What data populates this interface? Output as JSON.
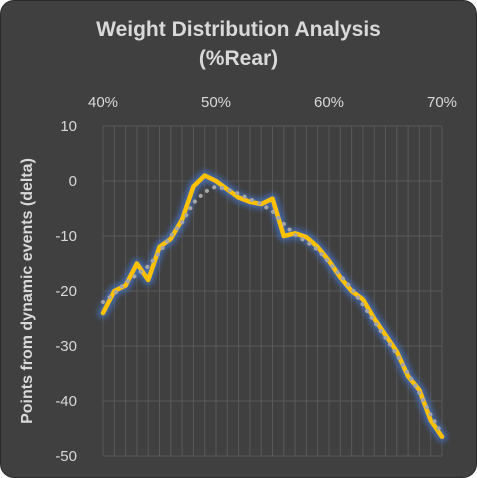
{
  "chart_data": {
    "type": "line",
    "title_line1": "Weight Distribution Analysis",
    "title_line2": "(%Rear)",
    "xlabel": "",
    "ylabel": "Points from dynamic events (delta)",
    "x_axis_position": "top",
    "xlim": [
      40,
      70
    ],
    "ylim": [
      -50,
      10
    ],
    "x_tick_labels": [
      "40%",
      "50%",
      "60%",
      "70%"
    ],
    "x_tick_values": [
      40,
      50,
      60,
      70
    ],
    "y_tick_labels": [
      "10",
      "0",
      "-10",
      "-20",
      "-30",
      "-40",
      "-50"
    ],
    "y_tick_values": [
      10,
      0,
      -10,
      -20,
      -30,
      -40,
      -50
    ],
    "grid": true,
    "legend": "none",
    "series": [
      {
        "color": "#ffc000",
        "style": "solid",
        "glow": "#4472c4",
        "x": [
          40,
          41,
          42,
          43,
          44,
          45,
          46,
          47,
          48,
          49,
          50,
          51,
          52,
          53,
          54,
          55,
          56,
          57,
          58,
          59,
          60,
          61,
          62,
          63,
          64,
          65,
          66,
          67,
          68,
          69,
          70
        ],
        "y": [
          -24,
          -20,
          -19,
          -15,
          -18,
          -12,
          -10.5,
          -7,
          -1,
          1,
          0,
          -1.5,
          -3,
          -3.8,
          -4.2,
          -3.2,
          -10,
          -9.5,
          -10.2,
          -12,
          -14.5,
          -17.5,
          -20,
          -21.5,
          -25,
          -28,
          -31,
          -35.5,
          -38,
          -43.5,
          -46.5
        ]
      },
      {
        "color": "#a6a6a6",
        "style": "dotted",
        "x": [
          40,
          41,
          42,
          43,
          44,
          45,
          46,
          47,
          48,
          49,
          50,
          51,
          52,
          53,
          54,
          55,
          56,
          57,
          58,
          59,
          60,
          61,
          62,
          63,
          64,
          65,
          66,
          67,
          68,
          69,
          70
        ],
        "y": [
          -22,
          -20.5,
          -18.5,
          -17,
          -15.5,
          -13,
          -10,
          -7.5,
          -4,
          -2,
          -1,
          -1.5,
          -2.3,
          -3.3,
          -4.2,
          -5.5,
          -7.8,
          -9.8,
          -11,
          -12.5,
          -14.8,
          -17.2,
          -19.5,
          -22.5,
          -25.5,
          -28.5,
          -31.5,
          -35,
          -38.5,
          -42.5,
          -46
        ]
      }
    ]
  },
  "colors": {
    "background": "#404040",
    "grid": "#595959",
    "text": "#d9d9d9"
  }
}
